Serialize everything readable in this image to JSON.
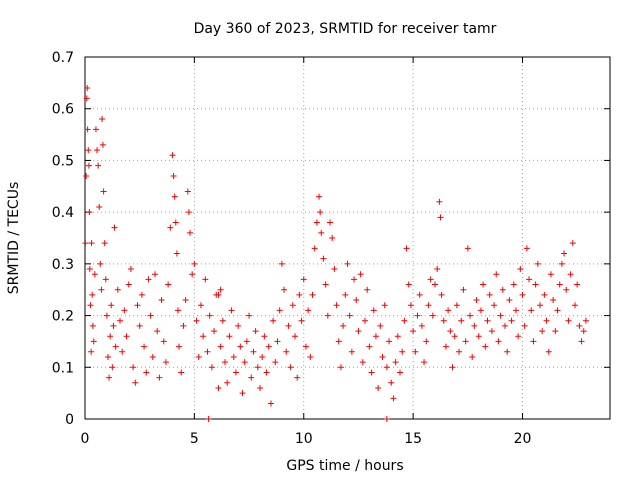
{
  "chart_data": {
    "type": "scatter",
    "title": "Day 360 of 2023, SRMTID for receiver tamr",
    "xlabel": "GPS time / hours",
    "ylabel": "SRMTID / TECUs",
    "xlim": [
      0,
      24
    ],
    "ylim": [
      0,
      0.7
    ],
    "xticks": [
      0,
      5,
      10,
      15,
      20
    ],
    "xtick_labels": [
      "0",
      "5",
      "10",
      "15",
      "20"
    ],
    "yticks": [
      0,
      0.1,
      0.2,
      0.3,
      0.4,
      0.5,
      0.6,
      0.7
    ],
    "ytick_labels": [
      "0",
      "0.1",
      "0.2",
      "0.3",
      "0.4",
      "0.5",
      "0.6",
      "0.7"
    ],
    "grid": true,
    "marker": "plus",
    "marker_color": "#ff0000",
    "points": [
      [
        0.02,
        0.34
      ],
      [
        0.05,
        0.47
      ],
      [
        0.08,
        0.62
      ],
      [
        0.1,
        0.64
      ],
      [
        0.12,
        0.56
      ],
      [
        0.15,
        0.52
      ],
      [
        0.18,
        0.49
      ],
      [
        0.2,
        0.4
      ],
      [
        0.22,
        0.29
      ],
      [
        0.25,
        0.22
      ],
      [
        0.28,
        0.13
      ],
      [
        0.3,
        0.34
      ],
      [
        0.33,
        0.24
      ],
      [
        0.36,
        0.18
      ],
      [
        0.4,
        0.15
      ],
      [
        0.45,
        0.28
      ],
      [
        0.5,
        0.56
      ],
      [
        0.55,
        0.52
      ],
      [
        0.6,
        0.49
      ],
      [
        0.65,
        0.41
      ],
      [
        0.7,
        0.3
      ],
      [
        0.75,
        0.25
      ],
      [
        0.78,
        0.58
      ],
      [
        0.82,
        0.53
      ],
      [
        0.85,
        0.44
      ],
      [
        0.9,
        0.34
      ],
      [
        0.95,
        0.27
      ],
      [
        1.0,
        0.2
      ],
      [
        1.05,
        0.12
      ],
      [
        1.1,
        0.08
      ],
      [
        1.15,
        0.16
      ],
      [
        1.2,
        0.22
      ],
      [
        1.25,
        0.1
      ],
      [
        1.3,
        0.18
      ],
      [
        1.35,
        0.37
      ],
      [
        1.4,
        0.14
      ],
      [
        1.5,
        0.25
      ],
      [
        1.6,
        0.19
      ],
      [
        1.7,
        0.13
      ],
      [
        1.8,
        0.21
      ],
      [
        1.9,
        0.16
      ],
      [
        2.0,
        0.26
      ],
      [
        2.1,
        0.29
      ],
      [
        2.2,
        0.1
      ],
      [
        2.3,
        0.07
      ],
      [
        2.4,
        0.22
      ],
      [
        2.5,
        0.18
      ],
      [
        2.6,
        0.24
      ],
      [
        2.7,
        0.14
      ],
      [
        2.8,
        0.09
      ],
      [
        2.9,
        0.27
      ],
      [
        3.0,
        0.2
      ],
      [
        3.1,
        0.12
      ],
      [
        3.2,
        0.28
      ],
      [
        3.3,
        0.17
      ],
      [
        3.4,
        0.08
      ],
      [
        3.5,
        0.23
      ],
      [
        3.6,
        0.15
      ],
      [
        3.7,
        0.11
      ],
      [
        3.8,
        0.26
      ],
      [
        3.9,
        0.37
      ],
      [
        4.0,
        0.51
      ],
      [
        4.05,
        0.47
      ],
      [
        4.1,
        0.43
      ],
      [
        4.15,
        0.38
      ],
      [
        4.2,
        0.32
      ],
      [
        4.25,
        0.21
      ],
      [
        4.3,
        0.14
      ],
      [
        4.4,
        0.09
      ],
      [
        4.5,
        0.18
      ],
      [
        4.6,
        0.23
      ],
      [
        4.7,
        0.44
      ],
      [
        4.75,
        0.4
      ],
      [
        4.8,
        0.36
      ],
      [
        4.9,
        0.28
      ],
      [
        5.0,
        0.3
      ],
      [
        5.1,
        0.19
      ],
      [
        5.2,
        0.12
      ],
      [
        5.3,
        0.22
      ],
      [
        5.4,
        0.16
      ],
      [
        5.5,
        0.27
      ],
      [
        5.6,
        0.13
      ],
      [
        5.7,
        0.2
      ],
      [
        5.8,
        0.1
      ],
      [
        5.9,
        0.17
      ],
      [
        6.0,
        0.24
      ],
      [
        6.1,
        0.06
      ],
      [
        6.2,
        0.14
      ],
      [
        6.3,
        0.19
      ],
      [
        6.4,
        0.11
      ],
      [
        6.5,
        0.07
      ],
      [
        6.6,
        0.16
      ],
      [
        6.7,
        0.21
      ],
      [
        6.8,
        0.12
      ],
      [
        6.9,
        0.09
      ],
      [
        7.0,
        0.18
      ],
      [
        7.1,
        0.14
      ],
      [
        7.2,
        0.05
      ],
      [
        7.3,
        0.11
      ],
      [
        7.4,
        0.15
      ],
      [
        7.5,
        0.2
      ],
      [
        7.6,
        0.08
      ],
      [
        7.7,
        0.13
      ],
      [
        7.8,
        0.17
      ],
      [
        7.9,
        0.1
      ],
      [
        8.0,
        0.06
      ],
      [
        8.1,
        0.12
      ],
      [
        8.2,
        0.16
      ],
      [
        8.3,
        0.09
      ],
      [
        8.4,
        0.14
      ],
      [
        8.5,
        0.03
      ],
      [
        8.6,
        0.19
      ],
      [
        8.7,
        0.11
      ],
      [
        8.8,
        0.15
      ],
      [
        8.9,
        0.21
      ],
      [
        9.0,
        0.3
      ],
      [
        9.1,
        0.25
      ],
      [
        9.2,
        0.13
      ],
      [
        9.3,
        0.18
      ],
      [
        9.4,
        0.1
      ],
      [
        9.5,
        0.22
      ],
      [
        9.6,
        0.16
      ],
      [
        9.7,
        0.08
      ],
      [
        9.8,
        0.24
      ],
      [
        9.9,
        0.19
      ],
      [
        10.0,
        0.27
      ],
      [
        10.1,
        0.14
      ],
      [
        10.2,
        0.21
      ],
      [
        10.3,
        0.12
      ],
      [
        10.4,
        0.24
      ],
      [
        10.5,
        0.33
      ],
      [
        10.6,
        0.38
      ],
      [
        10.7,
        0.43
      ],
      [
        10.75,
        0.4
      ],
      [
        10.8,
        0.36
      ],
      [
        10.9,
        0.31
      ],
      [
        11.0,
        0.26
      ],
      [
        11.1,
        0.2
      ],
      [
        11.2,
        0.38
      ],
      [
        11.3,
        0.35
      ],
      [
        11.4,
        0.29
      ],
      [
        11.5,
        0.22
      ],
      [
        11.6,
        0.15
      ],
      [
        11.7,
        0.1
      ],
      [
        11.8,
        0.18
      ],
      [
        11.9,
        0.24
      ],
      [
        12.0,
        0.3
      ],
      [
        12.1,
        0.2
      ],
      [
        12.2,
        0.13
      ],
      [
        12.3,
        0.27
      ],
      [
        12.4,
        0.23
      ],
      [
        12.5,
        0.17
      ],
      [
        12.6,
        0.28
      ],
      [
        12.7,
        0.11
      ],
      [
        12.8,
        0.19
      ],
      [
        12.9,
        0.25
      ],
      [
        13.0,
        0.14
      ],
      [
        13.1,
        0.09
      ],
      [
        13.2,
        0.21
      ],
      [
        13.3,
        0.16
      ],
      [
        13.4,
        0.06
      ],
      [
        13.5,
        0.18
      ],
      [
        13.6,
        0.12
      ],
      [
        13.7,
        0.22
      ],
      [
        13.8,
        0.1
      ],
      [
        13.9,
        0.15
      ],
      [
        14.0,
        0.07
      ],
      [
        14.1,
        0.04
      ],
      [
        14.2,
        0.11
      ],
      [
        14.3,
        0.16
      ],
      [
        14.4,
        0.09
      ],
      [
        14.5,
        0.13
      ],
      [
        14.6,
        0.19
      ],
      [
        14.7,
        0.33
      ],
      [
        14.8,
        0.26
      ],
      [
        14.9,
        0.22
      ],
      [
        15.0,
        0.17
      ],
      [
        15.1,
        0.13
      ],
      [
        15.2,
        0.2
      ],
      [
        15.3,
        0.24
      ],
      [
        15.4,
        0.18
      ],
      [
        15.5,
        0.11
      ],
      [
        15.6,
        0.15
      ],
      [
        15.7,
        0.22
      ],
      [
        15.8,
        0.27
      ],
      [
        15.9,
        0.2
      ],
      [
        16.0,
        0.26
      ],
      [
        16.1,
        0.29
      ],
      [
        16.2,
        0.42
      ],
      [
        16.25,
        0.39
      ],
      [
        16.3,
        0.24
      ],
      [
        16.4,
        0.19
      ],
      [
        16.5,
        0.14
      ],
      [
        16.6,
        0.21
      ],
      [
        16.7,
        0.17
      ],
      [
        16.8,
        0.1
      ],
      [
        16.9,
        0.16
      ],
      [
        17.0,
        0.22
      ],
      [
        17.1,
        0.13
      ],
      [
        17.2,
        0.19
      ],
      [
        17.3,
        0.25
      ],
      [
        17.4,
        0.15
      ],
      [
        17.5,
        0.33
      ],
      [
        17.6,
        0.2
      ],
      [
        17.7,
        0.12
      ],
      [
        17.8,
        0.18
      ],
      [
        17.9,
        0.23
      ],
      [
        18.0,
        0.16
      ],
      [
        18.1,
        0.21
      ],
      [
        18.2,
        0.26
      ],
      [
        18.3,
        0.14
      ],
      [
        18.4,
        0.19
      ],
      [
        18.5,
        0.24
      ],
      [
        18.6,
        0.17
      ],
      [
        18.7,
        0.22
      ],
      [
        18.8,
        0.28
      ],
      [
        18.9,
        0.15
      ],
      [
        19.0,
        0.2
      ],
      [
        19.1,
        0.25
      ],
      [
        19.2,
        0.18
      ],
      [
        19.3,
        0.13
      ],
      [
        19.4,
        0.23
      ],
      [
        19.5,
        0.19
      ],
      [
        19.6,
        0.26
      ],
      [
        19.7,
        0.21
      ],
      [
        19.8,
        0.16
      ],
      [
        19.9,
        0.29
      ],
      [
        20.0,
        0.24
      ],
      [
        20.1,
        0.18
      ],
      [
        20.2,
        0.33
      ],
      [
        20.3,
        0.27
      ],
      [
        20.4,
        0.21
      ],
      [
        20.5,
        0.15
      ],
      [
        20.6,
        0.26
      ],
      [
        20.7,
        0.3
      ],
      [
        20.8,
        0.22
      ],
      [
        20.9,
        0.17
      ],
      [
        21.0,
        0.24
      ],
      [
        21.1,
        0.19
      ],
      [
        21.2,
        0.13
      ],
      [
        21.3,
        0.28
      ],
      [
        21.4,
        0.23
      ],
      [
        21.5,
        0.17
      ],
      [
        21.6,
        0.21
      ],
      [
        21.7,
        0.26
      ],
      [
        21.8,
        0.3
      ],
      [
        21.9,
        0.32
      ],
      [
        22.0,
        0.25
      ],
      [
        22.1,
        0.19
      ],
      [
        22.2,
        0.28
      ],
      [
        22.3,
        0.34
      ],
      [
        22.4,
        0.22
      ],
      [
        22.5,
        0.26
      ],
      [
        22.6,
        0.18
      ],
      [
        22.7,
        0.15
      ],
      [
        22.8,
        0.17
      ],
      [
        22.9,
        0.19
      ],
      [
        5.65,
        0.0
      ],
      [
        13.8,
        0.0
      ],
      [
        6.1,
        0.24
      ],
      [
        6.2,
        0.25
      ]
    ]
  }
}
